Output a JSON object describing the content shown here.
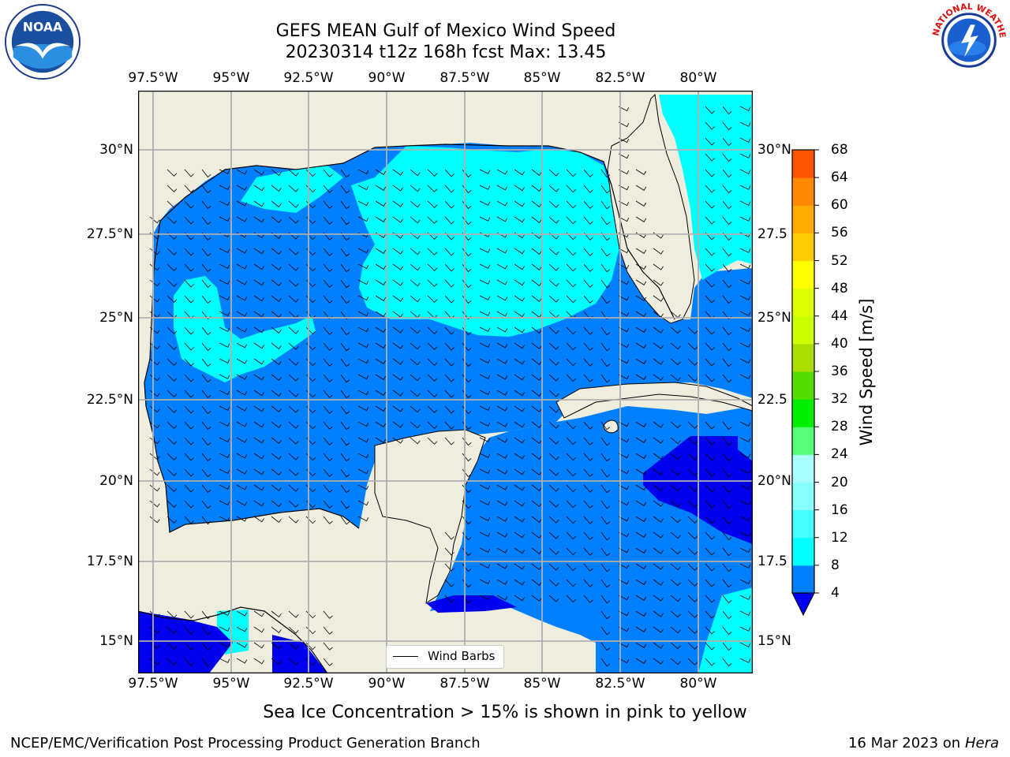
{
  "title_line1": "GEFS MEAN Gulf of Mexico Wind Speed",
  "title_line2": "20230314 t12z 168h fcst   Max: 13.45",
  "lon_ticks": [
    "97.5°W",
    "95°W",
    "92.5°W",
    "90°W",
    "87.5°W",
    "85°W",
    "82.5°W",
    "80°W"
  ],
  "lat_ticks": [
    "30°N",
    "27.5°N",
    "25°N",
    "22.5°N",
    "20°N",
    "17.5°N",
    "15°N"
  ],
  "lat_ticks_right": [
    "30°N",
    "27.5",
    "25°N",
    "22.5",
    "20°N",
    "17.5",
    "15°N"
  ],
  "legend_label": "Wind Barbs",
  "colorbar": {
    "label": "Wind Speed [m/s]",
    "ticks": [
      "4",
      "8",
      "12",
      "16",
      "20",
      "24",
      "28",
      "32",
      "36",
      "40",
      "44",
      "48",
      "52",
      "56",
      "60",
      "64",
      "68"
    ],
    "colors": [
      "#0080ff",
      "#00ffff",
      "#44ffff",
      "#88ffff",
      "#aaffff",
      "#55ff77",
      "#00ee00",
      "#55dd00",
      "#aadd00",
      "#ccff00",
      "#ddff00",
      "#ffff00",
      "#ffcc00",
      "#ffaa00",
      "#ff8800",
      "#ff5500",
      "#ff2200",
      "#ff0000"
    ],
    "extend_color": "#0000ee"
  },
  "caption": "Sea Ice Concentration > 15% is shown in pink to yellow",
  "footer_left": "NCEP/EMC/Verification Post Processing Product Generation Branch",
  "footer_date": "16 Mar 2023 on",
  "footer_machine": "Hera",
  "colors": {
    "land": "#efedde",
    "grid": "#b0b0b0",
    "ws_4_8": "#0080ff",
    "ws_8_12": "#00ffff",
    "ws_0_4": "#0000ee"
  },
  "logos": {
    "left": "NOAA",
    "right": "NATIONAL WEATHER SERVICE"
  }
}
